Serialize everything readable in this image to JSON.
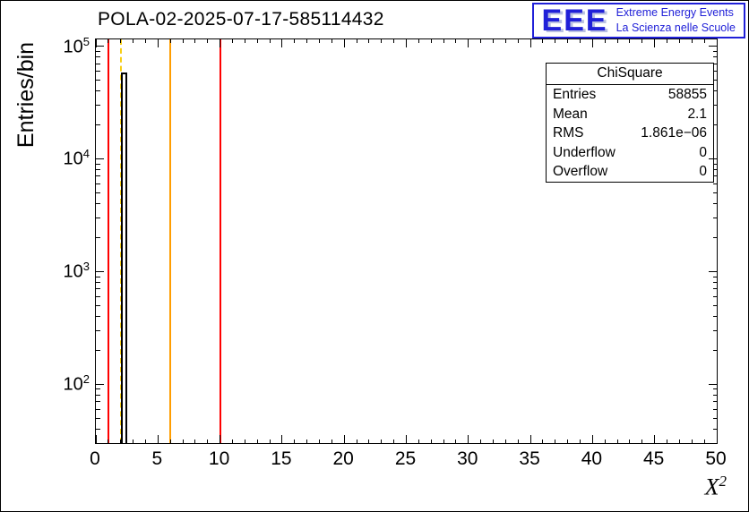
{
  "logo": {
    "acronym": "EEE",
    "line1": "Extreme Energy Events",
    "line2": "La Scienza nelle Scuole",
    "color": "#2020d8"
  },
  "chart_data": {
    "type": "histogram",
    "title": "POLA-02-2025-07-17-585114432",
    "xlabel": "X^2",
    "xlabel_base": "X",
    "xlabel_sup": "2",
    "ylabel": "Entries/bin",
    "x_axis": {
      "min": 0,
      "max": 50,
      "major_tick_step": 5,
      "minor_tick_step": 1,
      "tick_labels": [
        "0",
        "5",
        "10",
        "15",
        "20",
        "25",
        "30",
        "35",
        "40",
        "45",
        "50"
      ]
    },
    "y_axis": {
      "scale": "log",
      "min": 30,
      "max": 115000,
      "major_tick_exponents": [
        2,
        3,
        4,
        5
      ]
    },
    "grid": false,
    "histogram": {
      "name": "ChiSquare",
      "line_color": "#000000",
      "bins": [
        {
          "x_low": 2.0,
          "x_high": 2.5,
          "count": 58855
        }
      ]
    },
    "marker_lines": [
      {
        "x": 1,
        "color": "#ff0000",
        "style": "solid"
      },
      {
        "x": 2,
        "color": "#f7cf17",
        "style": "dashed"
      },
      {
        "x": 6,
        "color": "#ff9d00",
        "style": "solid"
      },
      {
        "x": 10,
        "color": "#ff0000",
        "style": "solid"
      }
    ],
    "stats_box": {
      "header": "ChiSquare",
      "rows": [
        {
          "label": "Entries",
          "value": "58855"
        },
        {
          "label": "Mean",
          "value": "2.1"
        },
        {
          "label": "RMS",
          "value": "1.861e−06"
        },
        {
          "label": "Underflow",
          "value": "0"
        },
        {
          "label": "Overflow",
          "value": "0"
        }
      ]
    }
  }
}
